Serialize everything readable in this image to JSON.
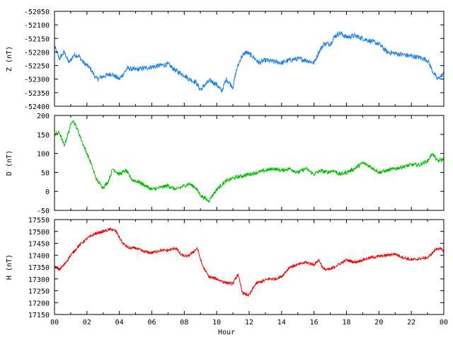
{
  "chart_data": [
    {
      "type": "line",
      "ylabel": "Z (nT)",
      "ylim": [
        -52400,
        -52050
      ],
      "yticks": [
        -52050,
        -52100,
        -52150,
        -52200,
        -52250,
        -52300,
        -52350,
        -52400
      ],
      "xlim": [
        0,
        24
      ],
      "color": "#1a80e6",
      "noise": 9,
      "x": [
        0,
        0.3,
        0.6,
        0.9,
        1.2,
        1.5,
        1.8,
        2.2,
        2.6,
        3.0,
        3.5,
        4.0,
        4.5,
        5.0,
        5.5,
        6.0,
        6.5,
        7.0,
        7.5,
        8.0,
        8.3,
        8.7,
        9.0,
        9.3,
        9.6,
        10.0,
        10.3,
        10.6,
        11.0,
        11.2,
        11.5,
        11.8,
        12.2,
        12.6,
        13.0,
        13.5,
        14.0,
        14.5,
        15.0,
        15.5,
        16.0,
        16.3,
        16.6,
        17.0,
        17.3,
        17.6,
        18.0,
        18.5,
        19.0,
        19.5,
        20.0,
        20.5,
        21.0,
        21.5,
        22.0,
        22.5,
        23.0,
        23.3,
        23.6,
        24.0
      ],
      "values": [
        -52180,
        -52225,
        -52200,
        -52240,
        -52210,
        -52215,
        -52240,
        -52260,
        -52300,
        -52290,
        -52280,
        -52300,
        -52260,
        -52265,
        -52260,
        -52255,
        -52250,
        -52245,
        -52270,
        -52285,
        -52300,
        -52310,
        -52340,
        -52320,
        -52305,
        -52320,
        -52345,
        -52300,
        -52330,
        -52270,
        -52220,
        -52200,
        -52215,
        -52240,
        -52230,
        -52235,
        -52240,
        -52230,
        -52225,
        -52230,
        -52240,
        -52200,
        -52170,
        -52170,
        -52140,
        -52130,
        -52145,
        -52140,
        -52150,
        -52160,
        -52170,
        -52200,
        -52205,
        -52210,
        -52215,
        -52220,
        -52230,
        -52270,
        -52300,
        -52280
      ]
    },
    {
      "type": "line",
      "ylabel": "D (nT)",
      "ylim": [
        -50,
        200
      ],
      "yticks": [
        200,
        150,
        100,
        50,
        0,
        -50
      ],
      "xlim": [
        0,
        24
      ],
      "color": "#00bb00",
      "noise": 5,
      "x": [
        0,
        0.3,
        0.6,
        0.9,
        1.1,
        1.4,
        1.8,
        2.2,
        2.6,
        3.0,
        3.3,
        3.6,
        4.0,
        4.4,
        4.8,
        5.2,
        5.6,
        6.0,
        6.5,
        7.0,
        7.5,
        8.0,
        8.3,
        8.7,
        9.0,
        9.5,
        10.0,
        10.5,
        11.0,
        11.5,
        12.0,
        12.5,
        13.0,
        13.5,
        14.0,
        14.5,
        15.0,
        15.5,
        16.0,
        16.4,
        16.8,
        17.2,
        17.6,
        18.0,
        18.5,
        19.0,
        19.5,
        20.0,
        20.5,
        21.0,
        21.5,
        22.0,
        22.5,
        23.0,
        23.3,
        23.6,
        24.0
      ],
      "values": [
        150,
        155,
        120,
        160,
        190,
        165,
        120,
        80,
        30,
        10,
        25,
        60,
        45,
        55,
        30,
        25,
        15,
        5,
        10,
        15,
        5,
        15,
        20,
        10,
        -10,
        -25,
        5,
        25,
        35,
        40,
        45,
        50,
        55,
        60,
        55,
        60,
        50,
        60,
        45,
        55,
        50,
        55,
        45,
        50,
        60,
        75,
        65,
        50,
        55,
        60,
        65,
        70,
        70,
        80,
        100,
        80,
        85
      ]
    },
    {
      "type": "line",
      "ylabel": "H (nT)",
      "ylim": [
        17150,
        17550
      ],
      "yticks": [
        17550,
        17500,
        17450,
        17400,
        17350,
        17300,
        17250,
        17200,
        17150
      ],
      "xlim": [
        0,
        24
      ],
      "xlabel": "Hour",
      "xtick_labels": [
        "00",
        "02",
        "04",
        "06",
        "08",
        "10",
        "12",
        "14",
        "16",
        "18",
        "20",
        "22",
        "00"
      ],
      "color": "#ee0000",
      "noise": 6,
      "x": [
        0,
        0.3,
        0.6,
        1.0,
        1.5,
        2.0,
        2.5,
        3.0,
        3.5,
        3.8,
        4.2,
        4.6,
        5.0,
        5.5,
        6.0,
        6.5,
        7.0,
        7.5,
        7.8,
        8.2,
        8.5,
        8.8,
        9.1,
        9.5,
        10.0,
        10.5,
        11.0,
        11.3,
        11.6,
        12.0,
        12.4,
        12.8,
        13.2,
        13.6,
        14.0,
        14.5,
        15.0,
        15.5,
        16.0,
        16.3,
        16.6,
        17.0,
        17.5,
        18.0,
        18.5,
        19.0,
        19.5,
        20.0,
        20.5,
        21.0,
        21.5,
        22.0,
        22.5,
        23.0,
        23.3,
        23.6,
        24.0
      ],
      "values": [
        17350,
        17340,
        17360,
        17400,
        17440,
        17470,
        17490,
        17500,
        17510,
        17500,
        17450,
        17430,
        17430,
        17415,
        17410,
        17420,
        17420,
        17430,
        17400,
        17395,
        17410,
        17430,
        17360,
        17310,
        17300,
        17285,
        17280,
        17320,
        17240,
        17230,
        17280,
        17290,
        17300,
        17300,
        17310,
        17350,
        17360,
        17370,
        17360,
        17380,
        17340,
        17340,
        17360,
        17380,
        17370,
        17380,
        17390,
        17395,
        17400,
        17405,
        17390,
        17380,
        17385,
        17390,
        17410,
        17430,
        17420
      ]
    }
  ]
}
